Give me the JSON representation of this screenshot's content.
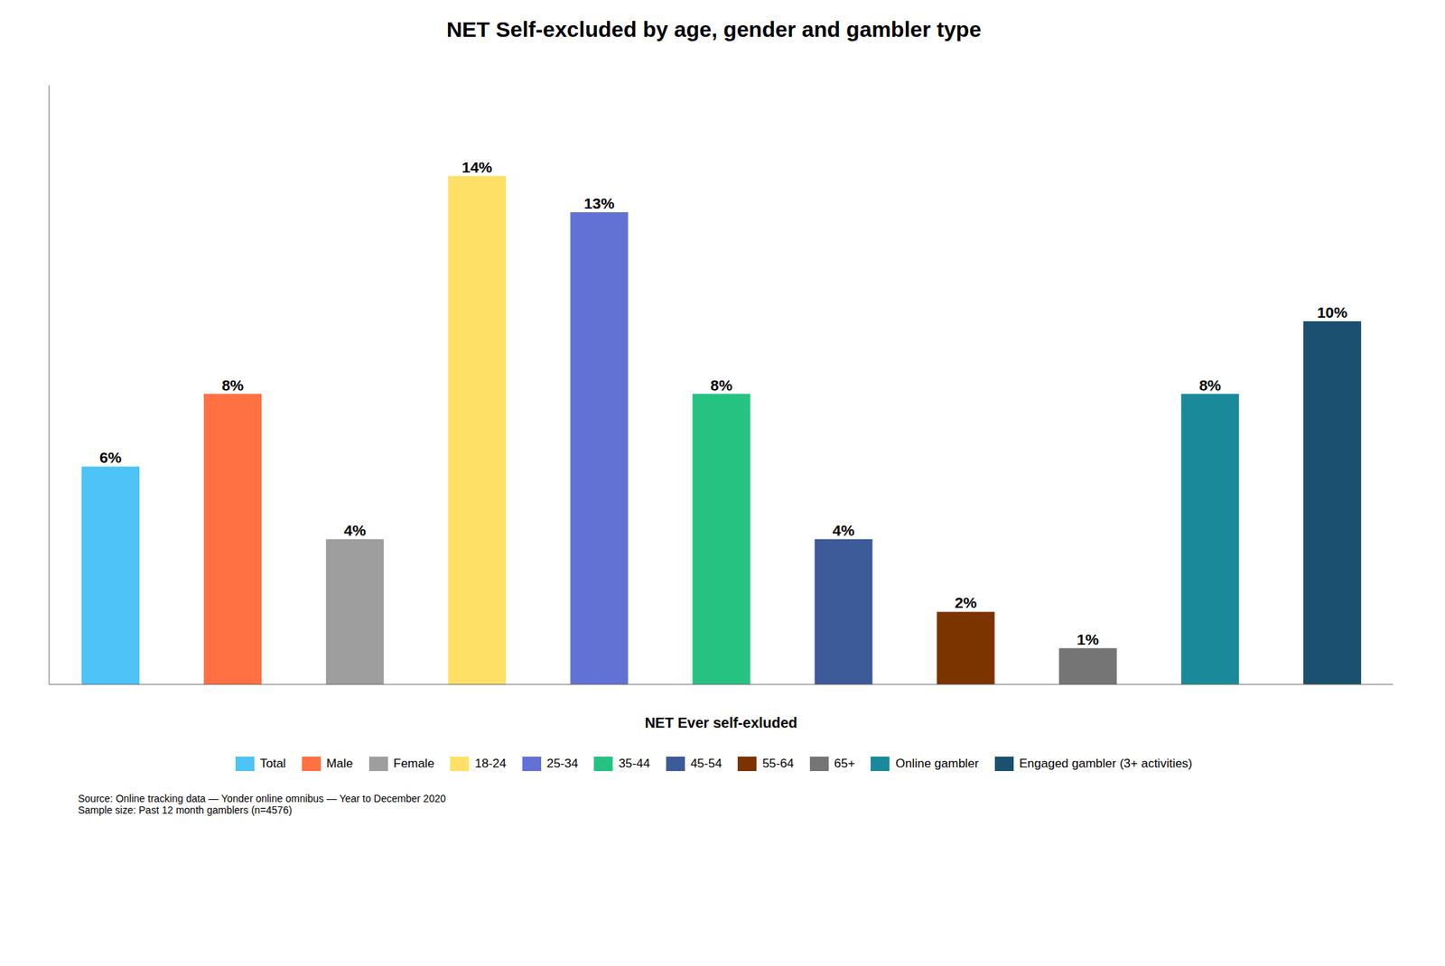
{
  "chart_data": {
    "type": "bar",
    "title": "NET Self-excluded by age, gender and gambler type",
    "xlabel": "NET Ever self-exluded",
    "categories": [
      "Total",
      "Male",
      "Female",
      "18-24",
      "25-34",
      "35-44",
      "45-54",
      "55-64",
      "65+",
      "Online gambler",
      "Engaged gambler (3+ activities)"
    ],
    "values": [
      6,
      8,
      4,
      14,
      13,
      8,
      4,
      2,
      1,
      8,
      10
    ],
    "value_labels": [
      "6%",
      "8%",
      "4%",
      "14%",
      "13%",
      "8%",
      "4%",
      "2%",
      "1%",
      "8%",
      "10%"
    ],
    "colors": [
      "#4DC3F7",
      "#FF7043",
      "#9E9E9E",
      "#FFE066",
      "#6272D4",
      "#26C281",
      "#3D5A99",
      "#7B3300",
      "#757575",
      "#1A8A9A",
      "#1B5070"
    ],
    "ylim": [
      0,
      16.5
    ],
    "data_labels": true,
    "tick_labels": false,
    "grid": false,
    "legend": "bottom",
    "annotations": [
      "Source: Online tracking data — Yonder online omnibus — Year to December 2020",
      "Sample size: Past 12 month gamblers (n=4576)"
    ]
  }
}
